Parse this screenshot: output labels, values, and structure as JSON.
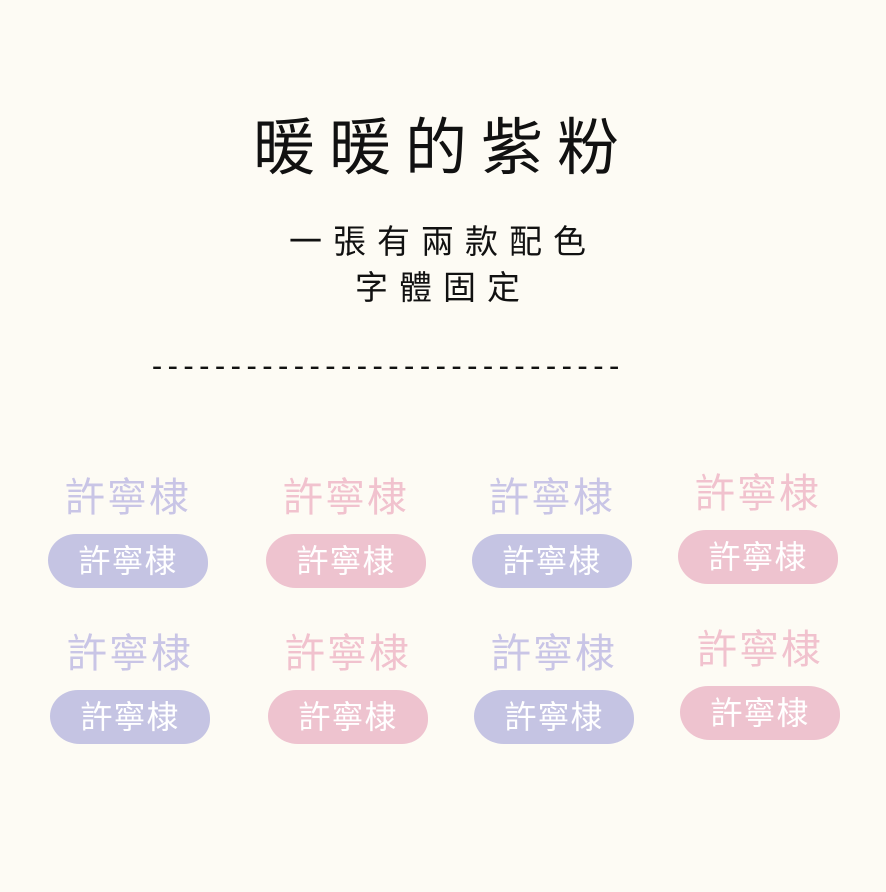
{
  "title": "暖暖的紫粉",
  "subtitle_line1": "一張有兩款配色",
  "subtitle_line2": "字體固定",
  "divider": "------------------------------",
  "colors": {
    "purple": "#c5c4e3",
    "pink": "#eec3cf",
    "purple_text": "#c9c5e6",
    "pink_text": "#f1c2ce",
    "background": "#fdfbf4"
  },
  "samples": [
    {
      "name": "許寧棣",
      "pill_name": "許寧棣",
      "color": "purple"
    },
    {
      "name": "許寧棣",
      "pill_name": "許寧棣",
      "color": "pink"
    },
    {
      "name": "許寧棣",
      "pill_name": "許寧棣",
      "color": "purple"
    },
    {
      "name": "許寧棣",
      "pill_name": "許寧棣",
      "color": "pink"
    },
    {
      "name": "許寧棣",
      "pill_name": "許寧棣",
      "color": "purple"
    },
    {
      "name": "許寧棣",
      "pill_name": "許寧棣",
      "color": "pink"
    },
    {
      "name": "許寧棣",
      "pill_name": "許寧棣",
      "color": "purple"
    },
    {
      "name": "許寧棣",
      "pill_name": "許寧棣",
      "color": "pink"
    }
  ]
}
